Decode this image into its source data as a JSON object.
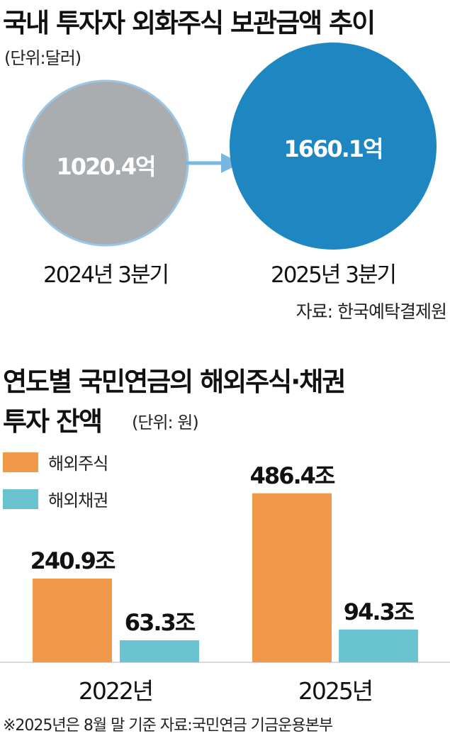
{
  "chart_data": [
    {
      "type": "bubble",
      "title": "국내 투자자 외화주식 보관금액 추이",
      "unit": "(단위:달러)",
      "categories": [
        "2024년 3분기",
        "2025년 3분기"
      ],
      "values": [
        1020.4,
        1660.1
      ],
      "value_labels": [
        "1020.4억",
        "1660.1억"
      ],
      "colors": [
        "#a9adb0",
        "#1e86c0"
      ],
      "source": "자료:  한국예탁결제원"
    },
    {
      "type": "bar",
      "title_line1": "연도별 국민연금의 해외주식·채권",
      "title_line2": "투자 잔액",
      "unit": "(단위: 원)",
      "categories": [
        "2022년",
        "2025년"
      ],
      "series": [
        {
          "name": "해외주식",
          "values": [
            240.9,
            486.4
          ],
          "labels": [
            "240.9조",
            "486.4조"
          ],
          "color": "#f0994a"
        },
        {
          "name": "해외채권",
          "values": [
            63.3,
            94.3
          ],
          "labels": [
            "63.3조",
            "94.3조"
          ],
          "color": "#6ac4d0"
        }
      ],
      "note": "※2025년은 8월 말 기준 자료:국민연금 기금운용본부"
    }
  ]
}
